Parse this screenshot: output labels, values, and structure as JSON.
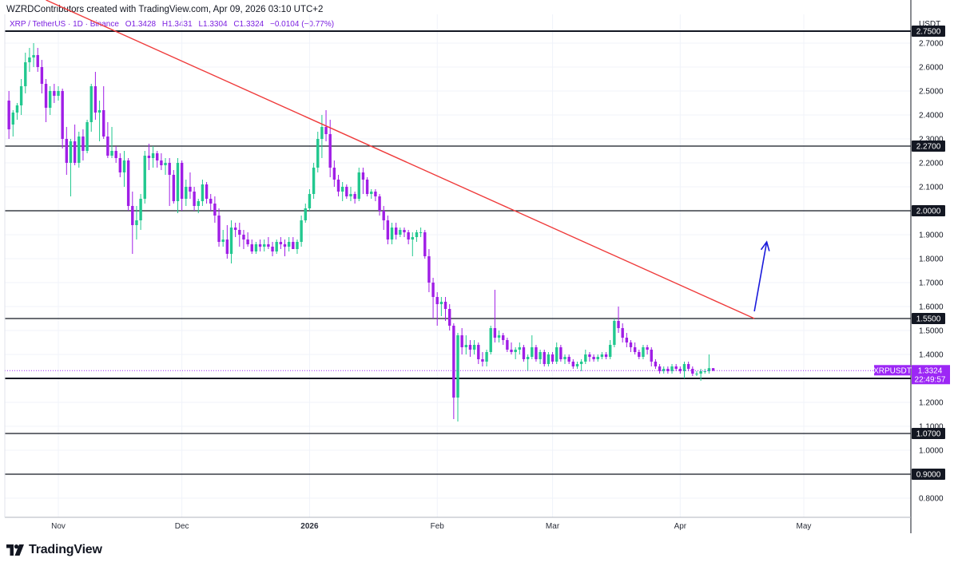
{
  "header": {
    "text": "WZRDContributors created with TradingView.com, Apr 09, 2026 03:10 UTC+2"
  },
  "legend": {
    "pair": "XRP / TetherUS · 1D · Binance",
    "open": "O1.3428",
    "high": "H1.3431",
    "low": "L1.3304",
    "close": "C1.3324",
    "change": "−0.0104 (−0.77%)"
  },
  "price_axis": {
    "unit": "USDT"
  },
  "last_price": {
    "symbol": "XRPUSDT",
    "price": "1.3324",
    "countdown": "22:49:57",
    "color": "#9c27f5"
  },
  "footer": {
    "brand": "TradingView"
  },
  "colors": {
    "up": "#22c88f",
    "down": "#a01ee6",
    "trendline": "#ef3b3b",
    "arrow": "#1a1adb",
    "level": "#131722"
  },
  "chart_data": {
    "type": "candlestick",
    "symbol": "XRPUSDT",
    "timeframe": "1D",
    "ylim": [
      0.72,
      2.82
    ],
    "y_ticks": [
      "0.8000",
      "0.9000",
      "1.0000",
      "1.1000",
      "1.2000",
      "1.3000",
      "1.4000",
      "1.5000",
      "1.6000",
      "1.7000",
      "1.8000",
      "1.9000",
      "2.0000",
      "2.1000",
      "2.2000",
      "2.3000",
      "2.4000",
      "2.5000",
      "2.6000",
      "2.7000",
      "2.7500"
    ],
    "x_ticks": [
      {
        "date": "2025-11-01",
        "label": "Nov",
        "bold": false
      },
      {
        "date": "2025-12-01",
        "label": "Dec",
        "bold": false
      },
      {
        "date": "2026-01-01",
        "label": "2026",
        "bold": true
      },
      {
        "date": "2026-02-01",
        "label": "Feb",
        "bold": false
      },
      {
        "date": "2026-03-01",
        "label": "Mar",
        "bold": false
      },
      {
        "date": "2026-04-01",
        "label": "Apr",
        "bold": false
      },
      {
        "date": "2026-05-01",
        "label": "May",
        "bold": false
      }
    ],
    "x_range": [
      "2025-10-19",
      "2026-05-27"
    ],
    "horizontal_levels": [
      {
        "value": 2.75,
        "label": "2.7500"
      },
      {
        "value": 2.27,
        "label": "2.2700"
      },
      {
        "value": 2.0,
        "label": "2.0000"
      },
      {
        "value": 1.55,
        "label": "1.5500"
      },
      {
        "value": 1.3,
        "label": "1.3000"
      },
      {
        "value": 1.07,
        "label": "1.0700"
      },
      {
        "value": 0.9,
        "label": "0.9000"
      }
    ],
    "trendline": {
      "start": {
        "date": "2025-10-29",
        "value": 2.88
      },
      "end": {
        "date": "2026-04-19",
        "value": 1.55
      }
    },
    "arrow": {
      "start": {
        "date": "2026-04-19",
        "value": 1.58
      },
      "end": {
        "date": "2026-04-22",
        "value": 1.87
      }
    },
    "ohlc": [
      [
        "2025-10-20",
        2.46,
        2.5,
        2.3,
        2.34
      ],
      [
        "2025-10-21",
        2.36,
        2.42,
        2.31,
        2.41
      ],
      [
        "2025-10-22",
        2.41,
        2.45,
        2.38,
        2.44
      ],
      [
        "2025-10-23",
        2.44,
        2.55,
        2.4,
        2.52
      ],
      [
        "2025-10-24",
        2.52,
        2.66,
        2.49,
        2.62
      ],
      [
        "2025-10-25",
        2.62,
        2.68,
        2.58,
        2.64
      ],
      [
        "2025-10-26",
        2.64,
        2.7,
        2.6,
        2.65
      ],
      [
        "2025-10-27",
        2.65,
        2.68,
        2.58,
        2.6
      ],
      [
        "2025-10-28",
        2.6,
        2.63,
        2.49,
        2.53
      ],
      [
        "2025-10-29",
        2.53,
        2.55,
        2.37,
        2.43
      ],
      [
        "2025-10-30",
        2.43,
        2.52,
        2.4,
        2.5
      ],
      [
        "2025-10-31",
        2.5,
        2.53,
        2.45,
        2.48
      ],
      [
        "2025-11-01",
        2.48,
        2.52,
        2.46,
        2.5
      ],
      [
        "2025-11-02",
        2.5,
        2.51,
        2.26,
        2.3
      ],
      [
        "2025-11-03",
        2.3,
        2.35,
        2.15,
        2.2
      ],
      [
        "2025-11-04",
        2.2,
        2.3,
        2.06,
        2.29
      ],
      [
        "2025-11-05",
        2.29,
        2.36,
        2.19,
        2.2
      ],
      [
        "2025-11-06",
        2.2,
        2.33,
        2.18,
        2.31
      ],
      [
        "2025-11-07",
        2.31,
        2.34,
        2.21,
        2.25
      ],
      [
        "2025-11-08",
        2.25,
        2.38,
        2.24,
        2.37
      ],
      [
        "2025-11-09",
        2.37,
        2.53,
        2.33,
        2.52
      ],
      [
        "2025-11-10",
        2.52,
        2.58,
        2.38,
        2.41
      ],
      [
        "2025-11-11",
        2.41,
        2.46,
        2.29,
        2.42
      ],
      [
        "2025-11-12",
        2.42,
        2.52,
        2.3,
        2.31
      ],
      [
        "2025-11-13",
        2.31,
        2.37,
        2.22,
        2.23
      ],
      [
        "2025-11-14",
        2.23,
        2.35,
        2.22,
        2.25
      ],
      [
        "2025-11-15",
        2.25,
        2.27,
        2.2,
        2.22
      ],
      [
        "2025-11-16",
        2.22,
        2.24,
        2.14,
        2.16
      ],
      [
        "2025-11-17",
        2.16,
        2.25,
        2.1,
        2.21
      ],
      [
        "2025-11-18",
        2.21,
        2.22,
        2.0,
        2.02
      ],
      [
        "2025-11-19",
        2.02,
        2.08,
        1.82,
        1.94
      ],
      [
        "2025-11-20",
        1.94,
        2.02,
        1.88,
        1.96
      ],
      [
        "2025-11-21",
        1.96,
        2.07,
        1.92,
        2.05
      ],
      [
        "2025-11-22",
        2.05,
        2.25,
        2.03,
        2.23
      ],
      [
        "2025-11-23",
        2.23,
        2.28,
        2.17,
        2.22
      ],
      [
        "2025-11-24",
        2.22,
        2.27,
        2.18,
        2.24
      ],
      [
        "2025-11-25",
        2.24,
        2.25,
        2.18,
        2.21
      ],
      [
        "2025-11-26",
        2.21,
        2.24,
        2.17,
        2.19
      ],
      [
        "2025-11-27",
        2.19,
        2.22,
        2.15,
        2.2
      ],
      [
        "2025-11-28",
        2.2,
        2.22,
        2.02,
        2.15
      ],
      [
        "2025-11-29",
        2.15,
        2.17,
        2.03,
        2.04
      ],
      [
        "2025-11-30",
        2.04,
        2.22,
        1.99,
        2.2
      ],
      [
        "2025-12-01",
        2.2,
        2.21,
        2.0,
        2.05
      ],
      [
        "2025-12-02",
        2.05,
        2.13,
        2.02,
        2.1
      ],
      [
        "2025-12-03",
        2.1,
        2.16,
        2.05,
        2.08
      ],
      [
        "2025-12-04",
        2.08,
        2.1,
        2.0,
        2.02
      ],
      [
        "2025-12-05",
        2.02,
        2.05,
        1.99,
        2.04
      ],
      [
        "2025-12-06",
        2.04,
        2.13,
        2.02,
        2.11
      ],
      [
        "2025-12-07",
        2.11,
        2.12,
        2.03,
        2.05
      ],
      [
        "2025-12-08",
        2.05,
        2.07,
        2.0,
        2.03
      ],
      [
        "2025-12-09",
        2.03,
        2.06,
        1.95,
        1.98
      ],
      [
        "2025-12-10",
        1.98,
        2.01,
        1.85,
        1.87
      ],
      [
        "2025-12-11",
        1.87,
        1.92,
        1.85,
        1.88
      ],
      [
        "2025-12-12",
        1.88,
        1.94,
        1.8,
        1.82
      ],
      [
        "2025-12-13",
        1.82,
        1.96,
        1.78,
        1.93
      ],
      [
        "2025-12-14",
        1.93,
        1.95,
        1.89,
        1.92
      ],
      [
        "2025-12-15",
        1.92,
        1.95,
        1.85,
        1.9
      ],
      [
        "2025-12-16",
        1.9,
        1.92,
        1.84,
        1.88
      ],
      [
        "2025-12-17",
        1.88,
        1.91,
        1.85,
        1.86
      ],
      [
        "2025-12-18",
        1.86,
        1.88,
        1.82,
        1.83
      ],
      [
        "2025-12-19",
        1.83,
        1.87,
        1.82,
        1.86
      ],
      [
        "2025-12-20",
        1.86,
        1.88,
        1.83,
        1.85
      ],
      [
        "2025-12-21",
        1.85,
        1.88,
        1.83,
        1.86
      ],
      [
        "2025-12-22",
        1.86,
        1.89,
        1.84,
        1.85
      ],
      [
        "2025-12-23",
        1.85,
        1.87,
        1.81,
        1.83
      ],
      [
        "2025-12-24",
        1.83,
        1.88,
        1.82,
        1.87
      ],
      [
        "2025-12-25",
        1.87,
        1.89,
        1.84,
        1.86
      ],
      [
        "2025-12-26",
        1.86,
        1.88,
        1.81,
        1.85
      ],
      [
        "2025-12-27",
        1.85,
        1.89,
        1.83,
        1.87
      ],
      [
        "2025-12-28",
        1.87,
        1.89,
        1.84,
        1.84
      ],
      [
        "2025-12-29",
        1.84,
        1.88,
        1.82,
        1.87
      ],
      [
        "2025-12-30",
        1.87,
        1.98,
        1.85,
        1.96
      ],
      [
        "2025-12-31",
        1.96,
        2.03,
        1.95,
        2.01
      ],
      [
        "2026-01-01",
        2.01,
        2.09,
        2.0,
        2.07
      ],
      [
        "2026-01-02",
        2.07,
        2.2,
        2.05,
        2.18
      ],
      [
        "2026-01-03",
        2.18,
        2.33,
        2.16,
        2.3
      ],
      [
        "2026-01-04",
        2.3,
        2.4,
        2.22,
        2.35
      ],
      [
        "2026-01-05",
        2.35,
        2.42,
        2.29,
        2.32
      ],
      [
        "2026-01-06",
        2.32,
        2.38,
        2.14,
        2.18
      ],
      [
        "2026-01-07",
        2.18,
        2.21,
        2.1,
        2.13
      ],
      [
        "2026-01-08",
        2.13,
        2.15,
        2.06,
        2.08
      ],
      [
        "2026-01-09",
        2.08,
        2.12,
        2.04,
        2.1
      ],
      [
        "2026-01-10",
        2.1,
        2.11,
        2.05,
        2.06
      ],
      [
        "2026-01-11",
        2.06,
        2.1,
        2.04,
        2.07
      ],
      [
        "2026-01-12",
        2.07,
        2.08,
        2.03,
        2.05
      ],
      [
        "2026-01-13",
        2.05,
        2.18,
        2.04,
        2.16
      ],
      [
        "2026-01-14",
        2.16,
        2.18,
        2.07,
        2.13
      ],
      [
        "2026-01-15",
        2.13,
        2.14,
        2.06,
        2.07
      ],
      [
        "2026-01-16",
        2.07,
        2.09,
        2.05,
        2.08
      ],
      [
        "2026-01-17",
        2.08,
        2.09,
        2.04,
        2.06
      ],
      [
        "2026-01-18",
        2.06,
        2.07,
        1.98,
        2.0
      ],
      [
        "2026-01-19",
        2.0,
        2.02,
        1.92,
        1.96
      ],
      [
        "2026-01-20",
        1.96,
        1.98,
        1.86,
        1.88
      ],
      [
        "2026-01-21",
        1.88,
        1.95,
        1.86,
        1.93
      ],
      [
        "2026-01-22",
        1.93,
        1.95,
        1.88,
        1.9
      ],
      [
        "2026-01-23",
        1.9,
        1.93,
        1.89,
        1.92
      ],
      [
        "2026-01-24",
        1.92,
        1.93,
        1.89,
        1.91
      ],
      [
        "2026-01-25",
        1.91,
        1.92,
        1.86,
        1.88
      ],
      [
        "2026-01-26",
        1.88,
        1.91,
        1.81,
        1.89
      ],
      [
        "2026-01-27",
        1.89,
        1.92,
        1.87,
        1.91
      ],
      [
        "2026-01-28",
        1.91,
        1.93,
        1.89,
        1.91
      ],
      [
        "2026-01-29",
        1.91,
        1.92,
        1.8,
        1.81
      ],
      [
        "2026-01-30",
        1.81,
        1.84,
        1.66,
        1.7
      ],
      [
        "2026-01-31",
        1.7,
        1.72,
        1.55,
        1.64
      ],
      [
        "2026-02-01",
        1.64,
        1.66,
        1.52,
        1.61
      ],
      [
        "2026-02-02",
        1.61,
        1.64,
        1.56,
        1.62
      ],
      [
        "2026-02-03",
        1.62,
        1.64,
        1.54,
        1.59
      ],
      [
        "2026-02-04",
        1.59,
        1.61,
        1.5,
        1.52
      ],
      [
        "2026-02-05",
        1.52,
        1.53,
        1.13,
        1.22
      ],
      [
        "2026-02-06",
        1.22,
        1.49,
        1.12,
        1.48
      ],
      [
        "2026-02-07",
        1.48,
        1.51,
        1.4,
        1.43
      ],
      [
        "2026-02-08",
        1.43,
        1.48,
        1.4,
        1.44
      ],
      [
        "2026-02-09",
        1.44,
        1.46,
        1.39,
        1.42
      ],
      [
        "2026-02-10",
        1.42,
        1.46,
        1.4,
        1.44
      ],
      [
        "2026-02-11",
        1.44,
        1.45,
        1.36,
        1.38
      ],
      [
        "2026-02-12",
        1.38,
        1.41,
        1.35,
        1.37
      ],
      [
        "2026-02-13",
        1.37,
        1.42,
        1.35,
        1.41
      ],
      [
        "2026-02-14",
        1.41,
        1.52,
        1.4,
        1.51
      ],
      [
        "2026-02-15",
        1.51,
        1.67,
        1.45,
        1.47
      ],
      [
        "2026-02-16",
        1.47,
        1.5,
        1.45,
        1.48
      ],
      [
        "2026-02-17",
        1.48,
        1.49,
        1.44,
        1.46
      ],
      [
        "2026-02-18",
        1.46,
        1.47,
        1.41,
        1.42
      ],
      [
        "2026-02-19",
        1.42,
        1.45,
        1.4,
        1.41
      ],
      [
        "2026-02-20",
        1.41,
        1.43,
        1.38,
        1.42
      ],
      [
        "2026-02-21",
        1.42,
        1.45,
        1.4,
        1.43
      ],
      [
        "2026-02-22",
        1.43,
        1.44,
        1.37,
        1.38
      ],
      [
        "2026-02-23",
        1.38,
        1.4,
        1.33,
        1.39
      ],
      [
        "2026-02-24",
        1.39,
        1.48,
        1.38,
        1.43
      ],
      [
        "2026-02-25",
        1.43,
        1.44,
        1.37,
        1.38
      ],
      [
        "2026-02-26",
        1.38,
        1.42,
        1.36,
        1.41
      ],
      [
        "2026-02-27",
        1.41,
        1.42,
        1.35,
        1.36
      ],
      [
        "2026-02-28",
        1.36,
        1.41,
        1.35,
        1.4
      ],
      [
        "2026-03-01",
        1.4,
        1.41,
        1.36,
        1.37
      ],
      [
        "2026-03-02",
        1.37,
        1.45,
        1.36,
        1.43
      ],
      [
        "2026-03-03",
        1.43,
        1.44,
        1.37,
        1.38
      ],
      [
        "2026-03-04",
        1.38,
        1.4,
        1.36,
        1.39
      ],
      [
        "2026-03-05",
        1.39,
        1.4,
        1.36,
        1.37
      ],
      [
        "2026-03-06",
        1.37,
        1.38,
        1.34,
        1.35
      ],
      [
        "2026-03-07",
        1.35,
        1.37,
        1.34,
        1.36
      ],
      [
        "2026-03-08",
        1.36,
        1.38,
        1.33,
        1.37
      ],
      [
        "2026-03-09",
        1.37,
        1.42,
        1.36,
        1.4
      ],
      [
        "2026-03-10",
        1.4,
        1.41,
        1.37,
        1.39
      ],
      [
        "2026-03-11",
        1.39,
        1.4,
        1.37,
        1.38
      ],
      [
        "2026-03-12",
        1.38,
        1.4,
        1.37,
        1.39
      ],
      [
        "2026-03-13",
        1.39,
        1.41,
        1.38,
        1.4
      ],
      [
        "2026-03-14",
        1.4,
        1.41,
        1.38,
        1.39
      ],
      [
        "2026-03-15",
        1.39,
        1.46,
        1.38,
        1.44
      ],
      [
        "2026-03-16",
        1.44,
        1.55,
        1.43,
        1.54
      ],
      [
        "2026-03-17",
        1.54,
        1.6,
        1.49,
        1.51
      ],
      [
        "2026-03-18",
        1.51,
        1.53,
        1.45,
        1.47
      ],
      [
        "2026-03-19",
        1.47,
        1.49,
        1.43,
        1.45
      ],
      [
        "2026-03-20",
        1.45,
        1.46,
        1.41,
        1.43
      ],
      [
        "2026-03-21",
        1.43,
        1.45,
        1.4,
        1.41
      ],
      [
        "2026-03-22",
        1.41,
        1.42,
        1.38,
        1.39
      ],
      [
        "2026-03-23",
        1.39,
        1.44,
        1.38,
        1.43
      ],
      [
        "2026-03-24",
        1.43,
        1.44,
        1.4,
        1.42
      ],
      [
        "2026-03-25",
        1.42,
        1.43,
        1.35,
        1.37
      ],
      [
        "2026-03-26",
        1.37,
        1.38,
        1.34,
        1.35
      ],
      [
        "2026-03-27",
        1.35,
        1.36,
        1.32,
        1.33
      ],
      [
        "2026-03-28",
        1.33,
        1.35,
        1.32,
        1.34
      ],
      [
        "2026-03-29",
        1.34,
        1.35,
        1.32,
        1.33
      ],
      [
        "2026-03-30",
        1.33,
        1.36,
        1.32,
        1.35
      ],
      [
        "2026-03-31",
        1.35,
        1.36,
        1.33,
        1.34
      ],
      [
        "2026-04-01",
        1.34,
        1.35,
        1.32,
        1.33
      ],
      [
        "2026-04-02",
        1.33,
        1.37,
        1.3,
        1.36
      ],
      [
        "2026-04-03",
        1.36,
        1.37,
        1.33,
        1.34
      ],
      [
        "2026-04-04",
        1.34,
        1.35,
        1.31,
        1.32
      ],
      [
        "2026-04-05",
        1.32,
        1.33,
        1.31,
        1.32
      ],
      [
        "2026-04-06",
        1.32,
        1.34,
        1.29,
        1.33
      ],
      [
        "2026-04-07",
        1.33,
        1.34,
        1.32,
        1.33
      ],
      [
        "2026-04-08",
        1.33,
        1.4,
        1.32,
        1.3428
      ],
      [
        "2026-04-09",
        1.3428,
        1.3431,
        1.3304,
        1.3324
      ]
    ]
  }
}
